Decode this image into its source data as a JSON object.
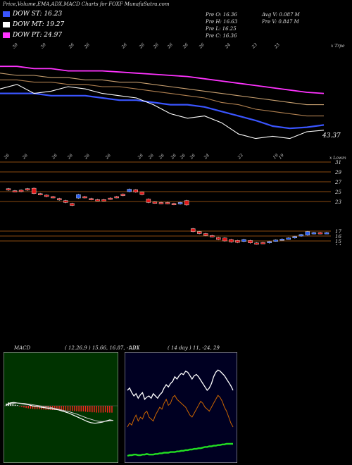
{
  "header": {
    "title": "Price,Volume,EMA,ADX,MACD Charts for FOXF MunafaSutra.com"
  },
  "legend": [
    {
      "label": "DOW ST: 16.23",
      "color": "#3a55ff"
    },
    {
      "label": "DOW MT: 19.27",
      "color": "#ffffff"
    },
    {
      "label": "DOW PT: 24.97",
      "color": "#ff33ff"
    }
  ],
  "stats": {
    "prev_o": "Pre   O: 16.36",
    "prev_h": "Pre   H: 16.63",
    "prev_l": "Pre   L: 16.25",
    "prev_c": "Pre   C: 16.36",
    "avg_v": "Avg V: 0.087 M",
    "prev_v": "Pre   V: 0.847 M"
  },
  "chart_data": [
    {
      "type": "line",
      "name": "price-ema",
      "top_label": "x Trpe",
      "price_label": "43.37",
      "date_labels": [
        "30",
        "30",
        "26",
        "26",
        "26",
        "26",
        "26",
        "26",
        "26",
        "26",
        "24",
        "23",
        "23",
        "19"
      ],
      "series": [
        {
          "color": "#3a55ff",
          "values": [
            45.0,
            45.0,
            45.0,
            44.9,
            44.9,
            44.9,
            44.8,
            44.7,
            44.7,
            44.6,
            44.5,
            44.5,
            44.4,
            44.2,
            44.0,
            43.8,
            43.55,
            43.45,
            43.5,
            43.6
          ]
        },
        {
          "color": "#ffffff",
          "values": [
            45.2,
            45.4,
            45.0,
            45.1,
            45.3,
            45.2,
            45.0,
            44.9,
            44.8,
            44.5,
            44.1,
            43.9,
            44.0,
            43.7,
            43.2,
            43.0,
            43.1,
            43.0,
            43.3,
            43.37
          ]
        },
        {
          "color": "#ff33ff",
          "values": [
            46.2,
            46.2,
            46.1,
            46.1,
            46.0,
            46.0,
            46.0,
            45.95,
            45.9,
            45.85,
            45.8,
            45.75,
            45.65,
            45.55,
            45.45,
            45.35,
            45.25,
            45.15,
            45.05,
            45.0
          ]
        },
        {
          "color": "#c8a070",
          "values": [
            45.9,
            45.8,
            45.8,
            45.7,
            45.7,
            45.6,
            45.6,
            45.5,
            45.5,
            45.4,
            45.3,
            45.2,
            45.1,
            45.0,
            44.9,
            44.8,
            44.7,
            44.6,
            44.5,
            44.5
          ]
        },
        {
          "color": "#b08050",
          "values": [
            45.6,
            45.6,
            45.5,
            45.5,
            45.4,
            45.4,
            45.3,
            45.3,
            45.2,
            45.1,
            45.0,
            44.9,
            44.8,
            44.6,
            44.5,
            44.3,
            44.2,
            44.1,
            44.0,
            44.0
          ]
        }
      ]
    },
    {
      "type": "bar",
      "name": "candles",
      "top_label": "x Lowm",
      "date_labels": [
        "26",
        "26",
        "26",
        "26",
        "26",
        "26",
        "26",
        "26",
        "26",
        "26",
        "26",
        "26",
        "24",
        "23",
        "19",
        "19"
      ],
      "y_ticks": [
        "31",
        "29",
        "27",
        "25",
        "23",
        "17",
        "16",
        "15",
        "14"
      ],
      "candles": [
        {
          "o": 25.3,
          "c": 25.6,
          "up": false
        },
        {
          "o": 25.2,
          "c": 25.0,
          "up": false
        },
        {
          "o": 25.0,
          "c": 25.3,
          "up": false
        },
        {
          "o": 25.3,
          "c": 25.6,
          "up": false
        },
        {
          "o": 25.7,
          "c": 24.6,
          "up": false
        },
        {
          "o": 24.6,
          "c": 24.4,
          "up": false
        },
        {
          "o": 24.3,
          "c": 24.0,
          "up": false
        },
        {
          "o": 24.0,
          "c": 23.8,
          "up": false
        },
        {
          "o": 23.6,
          "c": 23.3,
          "up": false
        },
        {
          "o": 23.2,
          "c": 22.8,
          "up": false
        },
        {
          "o": 22.6,
          "c": 22.2,
          "up": false
        },
        {
          "o": 24.4,
          "c": 23.7,
          "up": true
        },
        {
          "o": 23.8,
          "c": 24.0,
          "up": false
        },
        {
          "o": 23.6,
          "c": 23.4,
          "up": false
        },
        {
          "o": 23.4,
          "c": 23.3,
          "up": false
        },
        {
          "o": 23.4,
          "c": 23.2,
          "up": false
        },
        {
          "o": 23.7,
          "c": 23.5,
          "up": false
        },
        {
          "o": 24.0,
          "c": 23.8,
          "up": false
        },
        {
          "o": 24.5,
          "c": 24.2,
          "up": false
        },
        {
          "o": 25.0,
          "c": 25.5,
          "up": true
        },
        {
          "o": 25.4,
          "c": 24.9,
          "up": false
        },
        {
          "o": 24.9,
          "c": 24.4,
          "up": false
        },
        {
          "o": 23.5,
          "c": 22.8,
          "up": false
        },
        {
          "o": 22.9,
          "c": 22.7,
          "up": false
        },
        {
          "o": 22.8,
          "c": 22.6,
          "up": false
        },
        {
          "o": 22.8,
          "c": 22.6,
          "up": false
        },
        {
          "o": 22.6,
          "c": 22.4,
          "up": false
        },
        {
          "o": 22.5,
          "c": 22.8,
          "up": true
        },
        {
          "o": 23.2,
          "c": 22.3,
          "up": false
        },
        {
          "o": 17.5,
          "c": 16.9,
          "up": false
        },
        {
          "o": 16.9,
          "c": 16.5,
          "up": false
        },
        {
          "o": 16.5,
          "c": 16.1,
          "up": false
        },
        {
          "o": 16.1,
          "c": 15.9,
          "up": false
        },
        {
          "o": 15.7,
          "c": 15.3,
          "up": false
        },
        {
          "o": 15.6,
          "c": 15.0,
          "up": false
        },
        {
          "o": 15.3,
          "c": 14.8,
          "up": false
        },
        {
          "o": 15.1,
          "c": 14.7,
          "up": false
        },
        {
          "o": 14.9,
          "c": 15.3,
          "up": true
        },
        {
          "o": 15.1,
          "c": 14.6,
          "up": false
        },
        {
          "o": 14.6,
          "c": 14.4,
          "up": false
        },
        {
          "o": 14.7,
          "c": 14.6,
          "up": false
        },
        {
          "o": 14.6,
          "c": 14.9,
          "up": true
        },
        {
          "o": 15.0,
          "c": 15.2,
          "up": true
        },
        {
          "o": 15.3,
          "c": 15.4,
          "up": true
        },
        {
          "o": 15.5,
          "c": 15.6,
          "up": true
        },
        {
          "o": 15.9,
          "c": 15.6,
          "up": true
        },
        {
          "o": 16.3,
          "c": 16.0,
          "up": true
        },
        {
          "o": 16.2,
          "c": 16.9,
          "up": true
        },
        {
          "o": 16.5,
          "c": 16.7,
          "up": true
        },
        {
          "o": 16.7,
          "c": 16.5,
          "up": false
        },
        {
          "o": 16.6,
          "c": 16.7,
          "up": true
        }
      ]
    },
    {
      "type": "bar",
      "name": "macd",
      "label": "MACD",
      "params": "( 12,26,9 ) 15.66, 16.87, -1.21",
      "histogram": [
        0.4,
        0.6,
        0.5,
        0.3,
        0.2,
        0.1,
        -0.1,
        -0.2,
        -0.3,
        -0.4,
        -0.45,
        -0.5,
        -0.55,
        -0.6,
        -0.6,
        -0.6,
        -0.65,
        -0.65,
        -0.7,
        -0.7,
        -0.7,
        -0.75,
        -0.75,
        -0.75,
        -0.8,
        -0.8,
        -0.8,
        -0.85,
        -0.85,
        -0.9,
        -0.9,
        -0.95,
        -0.95,
        -1.0,
        -1.0,
        -1.0,
        -1.05,
        -1.1,
        -1.1,
        -1.15,
        -1.15,
        -1.2,
        -1.2,
        -1.2,
        -1.2,
        -1.15,
        -1.2,
        -1.2,
        -1.21
      ],
      "macd_line": [
        0.2,
        0.5,
        0.6,
        0.5,
        0.4,
        0.3,
        0.2,
        0.0,
        -0.1,
        -0.2,
        -0.3,
        -0.4,
        -0.5,
        -0.6,
        -0.7,
        -0.9,
        -1.1,
        -1.3,
        -1.6,
        -1.9,
        -2.2,
        -2.5,
        -2.8,
        -3.0,
        -3.1,
        -3.0,
        -2.9,
        -2.7,
        -2.5,
        -2.6
      ],
      "signal_line": [
        0.1,
        0.3,
        0.45,
        0.5,
        0.45,
        0.4,
        0.3,
        0.2,
        0.1,
        0.0,
        -0.1,
        -0.2,
        -0.3,
        -0.45,
        -0.6,
        -0.75,
        -0.9,
        -1.05,
        -1.25,
        -1.45,
        -1.7,
        -1.95,
        -2.2,
        -2.4,
        -2.6,
        -2.75,
        -2.8,
        -2.75,
        -2.65,
        -2.6
      ]
    },
    {
      "type": "line",
      "name": "adx",
      "label": "ADX",
      "params": "( 14 day ) 11, -24, 29",
      "plus_di": [
        30,
        32,
        31,
        34,
        36,
        33,
        35,
        34,
        37,
        38,
        35,
        34,
        33,
        36,
        38,
        40,
        39,
        42,
        44,
        41,
        42,
        45,
        46,
        44,
        43,
        42,
        41,
        40,
        38,
        36,
        35,
        37,
        39,
        41,
        43,
        42,
        40,
        39,
        38,
        40,
        42,
        44,
        46,
        45,
        43,
        40,
        38,
        35,
        32,
        30
      ],
      "minus_di": [
        60,
        62,
        58,
        55,
        57,
        53,
        56,
        58,
        52,
        54,
        55,
        53,
        57,
        55,
        53,
        56,
        58,
        62,
        65,
        63,
        66,
        68,
        72,
        70,
        73,
        75,
        74,
        77,
        76,
        73,
        70,
        73,
        74,
        72,
        69,
        66,
        63,
        60,
        62,
        66,
        72,
        76,
        78,
        77,
        75,
        73,
        70,
        67,
        64,
        60
      ],
      "adx": [
        10,
        11,
        11,
        12,
        12,
        11,
        11,
        12,
        12,
        13,
        12,
        12,
        12,
        13,
        13,
        14,
        14,
        15,
        15,
        15,
        16,
        16,
        16,
        17,
        17,
        18,
        18,
        19,
        19,
        20,
        20,
        21,
        21,
        22,
        22,
        23,
        24,
        24,
        25,
        25,
        26,
        26,
        27,
        27,
        28,
        28,
        29,
        29,
        29,
        29
      ]
    }
  ]
}
